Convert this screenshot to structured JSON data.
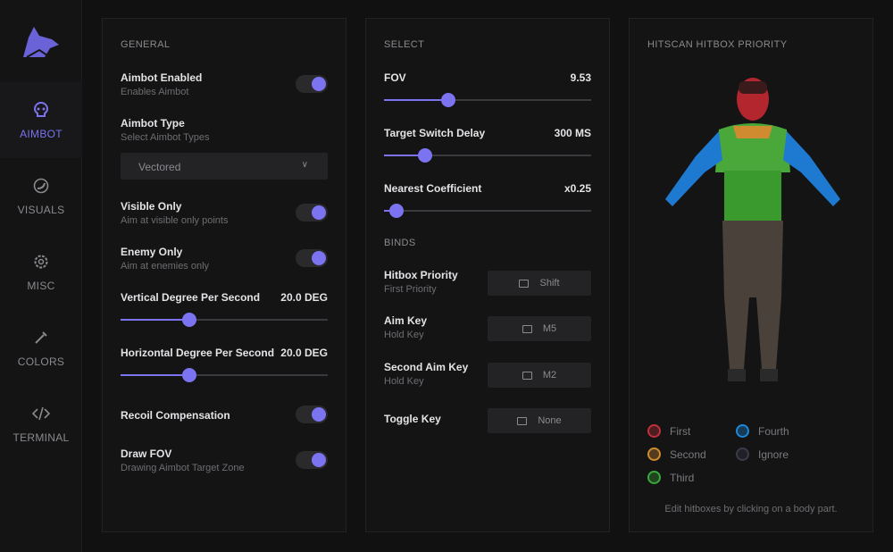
{
  "sidebar": {
    "items": [
      {
        "label": "AIMBOT",
        "icon": "skull-icon"
      },
      {
        "label": "VISUALS",
        "icon": "eye-icon"
      },
      {
        "label": "MISC",
        "icon": "gear-icon"
      },
      {
        "label": "COLORS",
        "icon": "dropper-icon"
      },
      {
        "label": "TERMINAL",
        "icon": "code-icon"
      }
    ]
  },
  "general": {
    "title": "GENERAL",
    "aimbot_enabled": {
      "label": "Aimbot Enabled",
      "sub": "Enables Aimbot",
      "on": true
    },
    "aimbot_type": {
      "label": "Aimbot Type",
      "sub": "Select Aimbot Types",
      "value": "Vectored"
    },
    "visible_only": {
      "label": "Visible Only",
      "sub": "Aim at visible only points",
      "on": true
    },
    "enemy_only": {
      "label": "Enemy Only",
      "sub": "Aim at enemies only",
      "on": true
    },
    "vertical": {
      "label": "Vertical Degree Per Second",
      "value": "20.0 DEG",
      "fraction": 0.33
    },
    "horizontal": {
      "label": "Horizontal Degree Per Second",
      "value": "20.0 DEG",
      "fraction": 0.33
    },
    "recoil": {
      "label": "Recoil Compensation",
      "on": true
    },
    "draw_fov": {
      "label": "Draw FOV",
      "sub": "Drawing Aimbot Target Zone",
      "on": true
    }
  },
  "select": {
    "title": "SELECT",
    "fov": {
      "label": "FOV",
      "value": "9.53",
      "fraction": 0.31
    },
    "switch_delay": {
      "label": "Target Switch Delay",
      "value": "300 MS",
      "fraction": 0.2
    },
    "nearest": {
      "label": "Nearest Coefficient",
      "value": "x0.25",
      "fraction": 0.06
    }
  },
  "binds": {
    "title": "BINDS",
    "items": [
      {
        "label": "Hitbox Priority",
        "sub": "First Priority",
        "key": "Shift"
      },
      {
        "label": "Aim Key",
        "sub": "Hold Key",
        "key": "M5"
      },
      {
        "label": "Second Aim Key",
        "sub": "Hold Key",
        "key": "M2"
      },
      {
        "label": "Toggle Key",
        "key": "None"
      }
    ]
  },
  "hitbox": {
    "title": "HITSCAN HITBOX PRIORITY",
    "legend": [
      {
        "label": "First",
        "color": "#c0303a"
      },
      {
        "label": "Second",
        "color": "#d08a30"
      },
      {
        "label": "Third",
        "color": "#3aa83a"
      },
      {
        "label": "Fourth",
        "color": "#1e88d8"
      },
      {
        "label": "Ignore",
        "color": "#3a3a4a"
      }
    ],
    "hint": "Edit hitboxes by clicking on a body part."
  }
}
